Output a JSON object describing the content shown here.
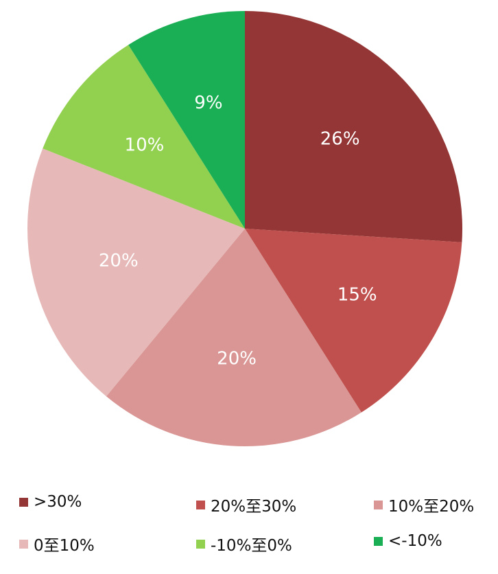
{
  "chart_data": {
    "type": "pie",
    "start": "top",
    "direction": "clockwise",
    "categories": [
      ">30%",
      "20%至30%",
      "10%至20%",
      "0至10%",
      "-10%至0%",
      "<-10%"
    ],
    "values": [
      26,
      15,
      20,
      20,
      10,
      9
    ],
    "data_labels": [
      "26%",
      "15%",
      "20%",
      "20%",
      "10%",
      "9%"
    ],
    "colors": [
      "#943635",
      "#C0504D",
      "#D99694",
      "#E6B9B8",
      "#92D050",
      "#1AAF54"
    ],
    "legend_position": "bottom"
  }
}
